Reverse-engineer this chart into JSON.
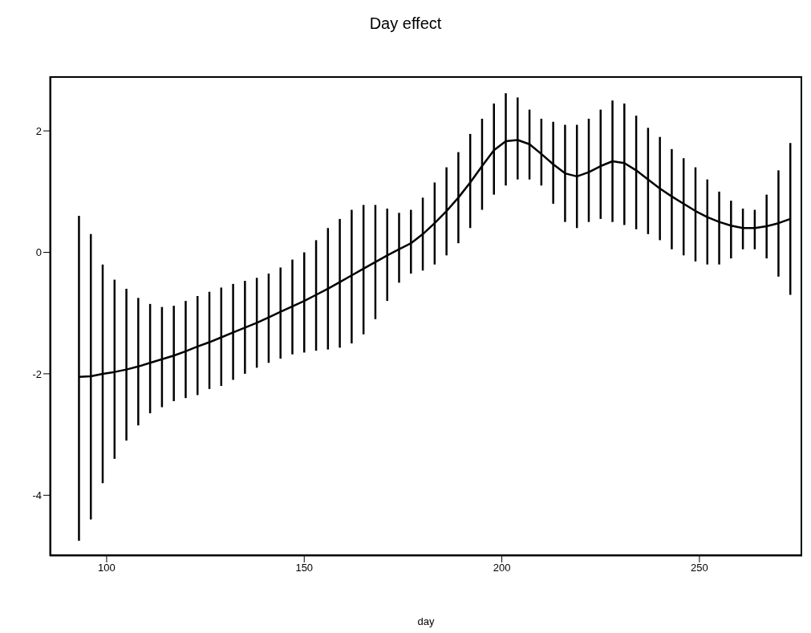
{
  "chart_data": {
    "type": "line",
    "title": "Day effect",
    "xlabel": "day",
    "xlim": [
      85.6,
      276
    ],
    "xticks": [
      100,
      150,
      200,
      250
    ],
    "ylim": [
      -5,
      2.9
    ],
    "yticks": [
      -4,
      -2,
      0,
      2
    ],
    "grid": false,
    "legend": false,
    "marker": "none",
    "line_style": "solid",
    "x": [
      93,
      96,
      99,
      102,
      105,
      108,
      111,
      114,
      117,
      120,
      123,
      126,
      129,
      132,
      135,
      138,
      141,
      144,
      147,
      150,
      153,
      156,
      159,
      162,
      165,
      168,
      171,
      174,
      177,
      180,
      183,
      186,
      189,
      192,
      195,
      198,
      201,
      204,
      207,
      210,
      213,
      216,
      219,
      222,
      225,
      228,
      231,
      234,
      237,
      240,
      243,
      246,
      249,
      252,
      255,
      258,
      261,
      264,
      267,
      270,
      273
    ],
    "series": [
      {
        "color": "#000000",
        "values": [
          -2.05,
          -2.04,
          -2.0,
          -1.97,
          -1.93,
          -1.88,
          -1.82,
          -1.76,
          -1.7,
          -1.63,
          -1.55,
          -1.48,
          -1.4,
          -1.32,
          -1.24,
          -1.16,
          -1.07,
          -0.98,
          -0.89,
          -0.8,
          -0.7,
          -0.6,
          -0.49,
          -0.38,
          -0.27,
          -0.16,
          -0.05,
          0.05,
          0.15,
          0.3,
          0.48,
          0.68,
          0.9,
          1.15,
          1.42,
          1.68,
          1.83,
          1.85,
          1.78,
          1.62,
          1.45,
          1.3,
          1.25,
          1.32,
          1.42,
          1.5,
          1.47,
          1.35,
          1.2,
          1.05,
          0.92,
          0.8,
          0.68,
          0.58,
          0.5,
          0.44,
          0.4,
          0.4,
          0.43,
          0.48,
          0.55
        ],
        "errors": [
          [
            -4.75,
            0.6
          ],
          [
            -4.4,
            0.3
          ],
          [
            -3.8,
            -0.2
          ],
          [
            -3.4,
            -0.45
          ],
          [
            -3.1,
            -0.6
          ],
          [
            -2.85,
            -0.75
          ],
          [
            -2.65,
            -0.85
          ],
          [
            -2.55,
            -0.9
          ],
          [
            -2.45,
            -0.88
          ],
          [
            -2.4,
            -0.8
          ],
          [
            -2.35,
            -0.72
          ],
          [
            -2.25,
            -0.65
          ],
          [
            -2.2,
            -0.58
          ],
          [
            -2.1,
            -0.52
          ],
          [
            -2.0,
            -0.47
          ],
          [
            -1.9,
            -0.42
          ],
          [
            -1.82,
            -0.35
          ],
          [
            -1.75,
            -0.25
          ],
          [
            -1.68,
            -0.12
          ],
          [
            -1.65,
            0.0
          ],
          [
            -1.62,
            0.2
          ],
          [
            -1.6,
            0.4
          ],
          [
            -1.57,
            0.55
          ],
          [
            -1.5,
            0.7
          ],
          [
            -1.35,
            0.78
          ],
          [
            -1.1,
            0.78
          ],
          [
            -0.8,
            0.72
          ],
          [
            -0.5,
            0.65
          ],
          [
            -0.35,
            0.7
          ],
          [
            -0.3,
            0.9
          ],
          [
            -0.2,
            1.15
          ],
          [
            -0.05,
            1.4
          ],
          [
            0.15,
            1.65
          ],
          [
            0.4,
            1.95
          ],
          [
            0.7,
            2.2
          ],
          [
            0.95,
            2.45
          ],
          [
            1.1,
            2.62
          ],
          [
            1.2,
            2.55
          ],
          [
            1.2,
            2.35
          ],
          [
            1.1,
            2.2
          ],
          [
            0.8,
            2.15
          ],
          [
            0.5,
            2.1
          ],
          [
            0.4,
            2.1
          ],
          [
            0.5,
            2.2
          ],
          [
            0.55,
            2.35
          ],
          [
            0.5,
            2.5
          ],
          [
            0.45,
            2.45
          ],
          [
            0.38,
            2.25
          ],
          [
            0.3,
            2.05
          ],
          [
            0.2,
            1.9
          ],
          [
            0.05,
            1.7
          ],
          [
            -0.05,
            1.55
          ],
          [
            -0.15,
            1.4
          ],
          [
            -0.2,
            1.2
          ],
          [
            -0.2,
            1.0
          ],
          [
            -0.1,
            0.85
          ],
          [
            0.05,
            0.72
          ],
          [
            0.05,
            0.7
          ],
          [
            -0.1,
            0.95
          ],
          [
            -0.4,
            1.35
          ],
          [
            -0.7,
            1.8
          ]
        ]
      }
    ]
  }
}
